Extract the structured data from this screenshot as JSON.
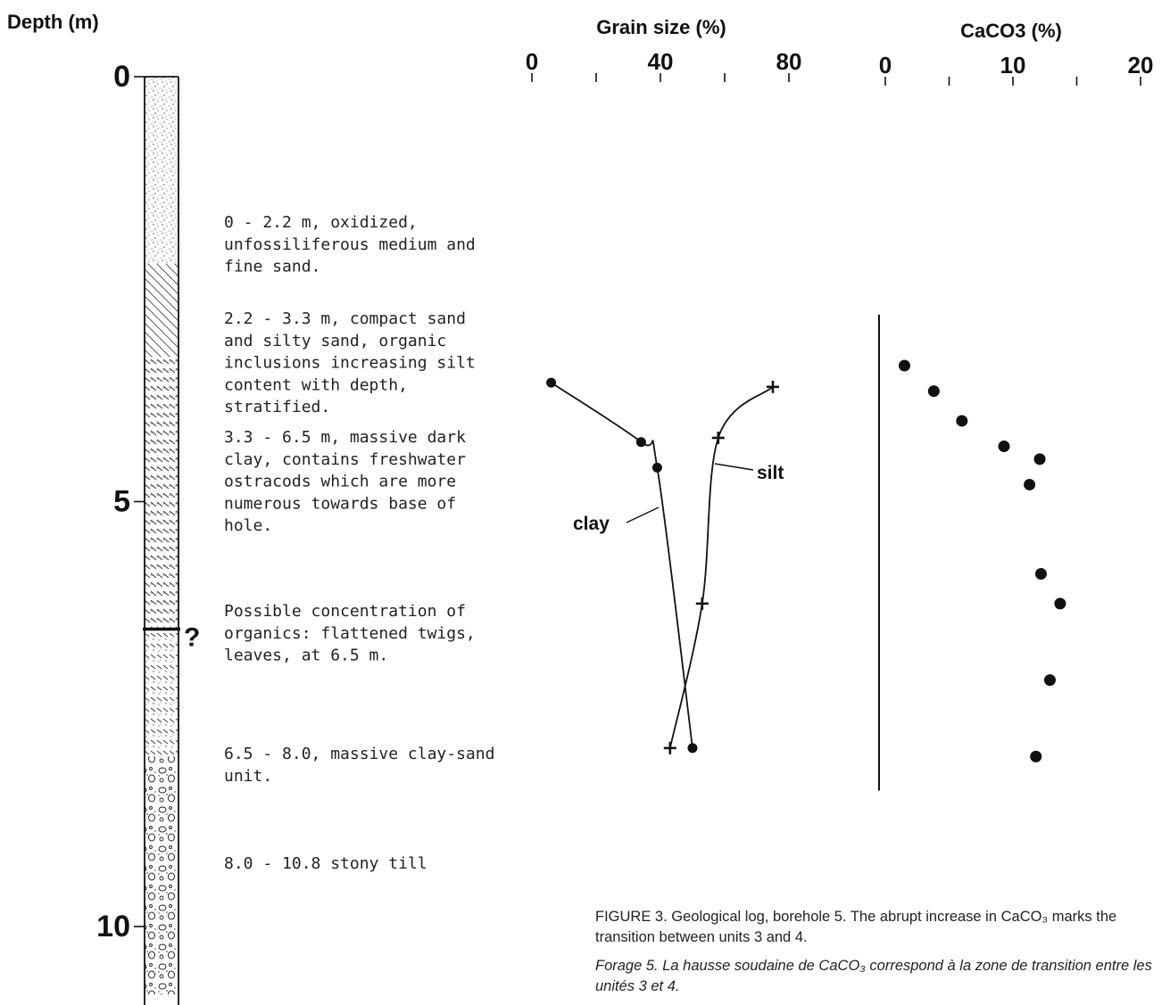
{
  "chart_data": [
    {
      "type": "stratigraphic-log",
      "ylabel": "Depth (m)",
      "ylim": [
        0,
        11
      ],
      "yticks": [
        "0",
        "5",
        "10"
      ],
      "units": [
        {
          "top": 0,
          "bottom": 2.2,
          "lithology": "sand"
        },
        {
          "top": 2.2,
          "bottom": 3.3,
          "lithology": "compact sand and silty sand"
        },
        {
          "top": 3.3,
          "bottom": 6.5,
          "lithology": "clay"
        },
        {
          "top": 6.5,
          "bottom": 8.0,
          "lithology": "clay-sand"
        },
        {
          "top": 8.0,
          "bottom": 10.8,
          "lithology": "stony till"
        }
      ],
      "boundary_mark": {
        "depth": 6.5,
        "label": "?"
      },
      "descriptions": [
        {
          "depth": 2.2,
          "lines": [
            "0 - 2.2 m, oxidized,",
            "unfossiliferous medium and",
            "fine sand."
          ]
        },
        {
          "depth": 3.2,
          "lines": [
            "2.2 - 3.3 m, compact sand",
            "and silty sand, organic",
            "inclusions increasing silt",
            "content with depth,",
            "stratified."
          ]
        },
        {
          "depth": 4.4,
          "lines": [
            "3.3 - 6.5 m, massive dark",
            "clay, contains freshwater",
            "ostracods which are more",
            "numerous towards base of",
            "hole."
          ]
        },
        {
          "depth": 6.2,
          "lines": [
            "Possible concentration of",
            "organics:  flattened twigs,",
            "leaves, at 6.5 m."
          ]
        },
        {
          "depth": 7.8,
          "lines": [
            "6.5 - 8.0, massive clay-sand",
            "unit."
          ]
        },
        {
          "depth": 9.0,
          "lines": [
            "8.0 - 10.8 stony till"
          ]
        }
      ]
    },
    {
      "type": "line",
      "title": "Grain size (%)",
      "xlim": [
        0,
        80
      ],
      "xticks": [
        0,
        40,
        80
      ],
      "minor_xticks": [
        20,
        60
      ],
      "series": [
        {
          "name": "clay",
          "marker": "dot",
          "x": [
            6,
            34,
            39,
            50
          ],
          "depth": [
            3.6,
            4.3,
            4.6,
            7.9
          ]
        },
        {
          "name": "silt",
          "marker": "plus",
          "x": [
            75,
            58,
            53,
            43
          ],
          "depth": [
            3.65,
            4.25,
            6.2,
            7.9
          ]
        }
      ]
    },
    {
      "type": "scatter",
      "title": "CaCO3 (%)",
      "xlim": [
        0,
        20
      ],
      "xticks": [
        0,
        10,
        20
      ],
      "minor_xticks": [
        5,
        15
      ],
      "baseline_depth_range": [
        2.8,
        8.4
      ],
      "x": [
        1.5,
        3.8,
        6.0,
        9.3,
        12.1,
        11.3,
        12.2,
        13.7,
        12.9,
        11.8
      ],
      "depth": [
        3.4,
        3.7,
        4.05,
        4.35,
        4.5,
        4.8,
        5.85,
        6.2,
        7.1,
        8.0
      ]
    }
  ],
  "caption": {
    "english": "FIGURE 3.   Geological log, borehole 5. The abrupt increase in CaCO₃ marks the transition between units 3 and 4.",
    "french": "Forage 5. La hausse soudaine de CaCO₃ correspond à la zone de transition entre les unités 3 et 4."
  }
}
